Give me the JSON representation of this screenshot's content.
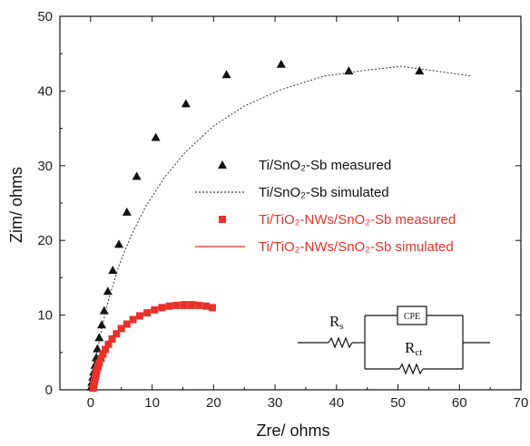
{
  "chart_data": {
    "type": "scatter",
    "xlabel": "Zre/ ohms",
    "ylabel": "Zim/ ohms",
    "xlim": [
      -5,
      70
    ],
    "ylim": [
      0,
      50
    ],
    "xticks": [
      0,
      10,
      20,
      30,
      40,
      50,
      60,
      70
    ],
    "yticks": [
      0,
      10,
      20,
      30,
      40,
      50
    ],
    "grid": false,
    "legend_position": "center-right",
    "series": [
      {
        "name": "Ti/SnO₂-Sb  measured",
        "style": "markers",
        "marker": "triangle",
        "color": "#111111",
        "x": [
          0.1,
          0.2,
          0.35,
          0.5,
          0.7,
          0.9,
          1.1,
          1.4,
          1.8,
          2.2,
          2.8,
          3.6,
          4.6,
          5.9,
          7.5,
          10.6,
          15.5,
          22.1,
          31.0,
          42.0,
          53.5
        ],
        "y": [
          0.4,
          1.0,
          1.7,
          2.4,
          3.3,
          4.3,
          5.5,
          7.0,
          8.7,
          10.6,
          13.2,
          16.0,
          19.5,
          23.8,
          28.6,
          33.8,
          38.3,
          42.2,
          43.6,
          42.7,
          42.7
        ]
      },
      {
        "name": "Ti/SnO₂-Sb  simulated",
        "style": "dotted-line",
        "color": "#333333",
        "x": [
          0,
          0.4,
          1.0,
          1.8,
          3.0,
          4.5,
          6.5,
          9.0,
          12.0,
          15.5,
          20.0,
          25.0,
          31.0,
          38.0,
          45.0,
          50.5,
          55.0,
          62.0
        ],
        "y": [
          0,
          2.2,
          5.0,
          8.2,
          12.3,
          16.4,
          20.5,
          24.6,
          28.4,
          31.9,
          35.3,
          38.0,
          40.2,
          42.0,
          42.8,
          43.3,
          42.8,
          42.0
        ]
      },
      {
        "name": "Ti/TiO₂-NWs/SnO₂-Sb  measured",
        "style": "markers",
        "marker": "square",
        "color": "#e8312a",
        "x": [
          0.4,
          0.5,
          0.6,
          0.7,
          0.8,
          0.9,
          1.0,
          1.2,
          1.4,
          1.7,
          2.0,
          2.4,
          2.9,
          3.5,
          4.2,
          5.0,
          5.9,
          6.9,
          8.0,
          9.2,
          10.4,
          11.6,
          12.8,
          14.0,
          15.2,
          16.4,
          17.6,
          18.8,
          19.8
        ],
        "y": [
          0.2,
          0.6,
          1.0,
          1.4,
          1.8,
          2.2,
          2.6,
          3.1,
          3.6,
          4.2,
          4.8,
          5.4,
          6.1,
          6.8,
          7.5,
          8.2,
          8.8,
          9.4,
          9.9,
          10.3,
          10.7,
          11.0,
          11.2,
          11.3,
          11.3,
          11.3,
          11.3,
          11.2,
          11.0
        ]
      },
      {
        "name": "Ti/TiO₂-NWs/SnO₂-Sb  simulated",
        "style": "solid-line",
        "color": "#e8312a",
        "x": [
          0.3,
          0.5,
          0.8,
          1.2,
          1.8,
          2.6,
          3.6,
          4.8,
          6.2,
          7.8,
          9.5,
          11.3,
          13.2,
          15.0,
          16.8,
          18.4,
          19.8
        ],
        "y": [
          0,
          1.2,
          2.3,
          3.3,
          4.4,
          5.6,
          6.8,
          7.9,
          8.9,
          9.8,
          10.6,
          11.2,
          11.6,
          11.8,
          11.8,
          11.6,
          11.3
        ]
      }
    ],
    "legend": [
      {
        "text": "Ti/SnO₂-Sb  measured",
        "color": "#111111",
        "marker": "triangle"
      },
      {
        "text": "Ti/SnO₂-Sb  simulated",
        "color": "#111111",
        "marker": "dotted-line"
      },
      {
        "text": "Ti/TiO₂-NWs/SnO₂-Sb  measured",
        "color": "#e8312a",
        "marker": "square"
      },
      {
        "text": "Ti/TiO₂-NWs/SnO₂-Sb  simulated",
        "color": "#e8312a",
        "marker": "solid-line"
      }
    ],
    "inset_circuit": {
      "labels": {
        "resistor_s": "R",
        "resistor_s_sub": "s",
        "cpe": "CPE",
        "resistor_ct": "R",
        "resistor_ct_sub": "ct"
      }
    }
  }
}
